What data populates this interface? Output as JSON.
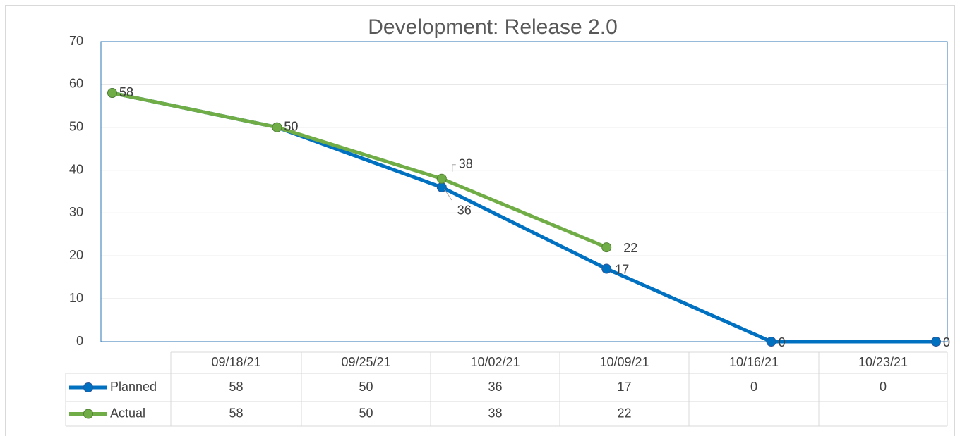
{
  "chart_data": {
    "type": "line",
    "title": "Development: Release 2.0",
    "categories": [
      "09/18/21",
      "09/25/21",
      "10/02/21",
      "10/09/21",
      "10/16/21",
      "10/23/21"
    ],
    "series": [
      {
        "name": "Planned",
        "color": "#0070c0",
        "values": [
          58,
          50,
          36,
          17,
          0,
          0
        ]
      },
      {
        "name": "Actual",
        "color": "#70ad47",
        "values": [
          58,
          50,
          38,
          22,
          null,
          null
        ]
      }
    ],
    "ylim": [
      0,
      70
    ],
    "yticks": [
      0,
      10,
      20,
      30,
      40,
      50,
      60,
      70
    ],
    "grid": true,
    "data_table": true
  }
}
